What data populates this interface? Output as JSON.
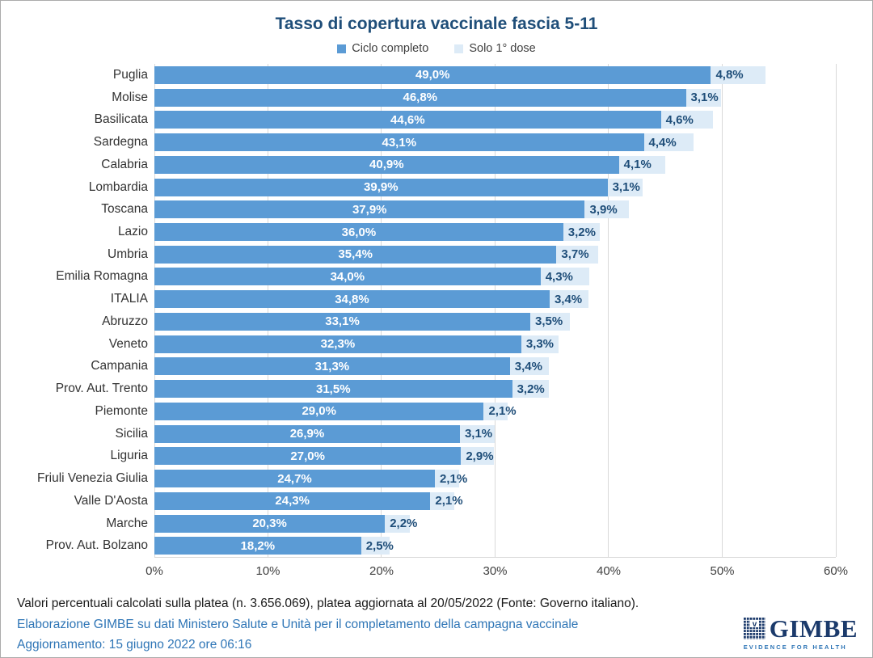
{
  "title": "Tasso di copertura vaccinale fascia 5-11",
  "colors": {
    "title_text": "#1F4E79",
    "bar_complete": "#5B9BD5",
    "bar_dose": "#DDEBF7",
    "dose_label_text": "#1F4E79",
    "footer_blue": "#2E75B6",
    "logo_navy": "#1B3A6B",
    "gridline": "#D9D9D9"
  },
  "chart_data": {
    "type": "bar",
    "orientation": "horizontal",
    "title": "Tasso di copertura vaccinale fascia 5-11",
    "categories": [
      "Puglia",
      "Molise",
      "Basilicata",
      "Sardegna",
      "Calabria",
      "Lombardia",
      "Toscana",
      "Lazio",
      "Umbria",
      "Emilia Romagna",
      "ITALIA",
      "Abruzzo",
      "Veneto",
      "Campania",
      "Prov. Aut. Trento",
      "Piemonte",
      "Sicilia",
      "Liguria",
      "Friuli Venezia Giulia",
      "Valle D'Aosta",
      "Marche",
      "Prov. Aut. Bolzano"
    ],
    "series": [
      {
        "name": "Ciclo completo",
        "color": "#5B9BD5",
        "values": [
          49.0,
          46.8,
          44.6,
          43.1,
          40.9,
          39.9,
          37.9,
          36.0,
          35.4,
          34.0,
          34.8,
          33.1,
          32.3,
          31.3,
          31.5,
          29.0,
          26.9,
          27.0,
          24.7,
          24.3,
          20.3,
          18.2
        ],
        "labels": [
          "49,0%",
          "46,8%",
          "44,6%",
          "43,1%",
          "40,9%",
          "39,9%",
          "37,9%",
          "36,0%",
          "35,4%",
          "34,0%",
          "34,8%",
          "33,1%",
          "32,3%",
          "31,3%",
          "31,5%",
          "29,0%",
          "26,9%",
          "27,0%",
          "24,7%",
          "24,3%",
          "20,3%",
          "18,2%"
        ]
      },
      {
        "name": "Solo 1° dose",
        "color": "#DDEBF7",
        "values": [
          4.8,
          3.1,
          4.6,
          4.4,
          4.1,
          3.1,
          3.9,
          3.2,
          3.7,
          4.3,
          3.4,
          3.5,
          3.3,
          3.4,
          3.2,
          2.1,
          3.1,
          2.9,
          2.1,
          2.1,
          2.2,
          2.5
        ],
        "labels": [
          "4,8%",
          "3,1%",
          "4,6%",
          "4,4%",
          "4,1%",
          "3,1%",
          "3,9%",
          "3,2%",
          "3,7%",
          "4,3%",
          "3,4%",
          "3,5%",
          "3,3%",
          "3,4%",
          "3,2%",
          "2,1%",
          "3,1%",
          "2,9%",
          "2,1%",
          "2,1%",
          "2,2%",
          "2,5%"
        ]
      }
    ],
    "stacked": true,
    "xlim": [
      0,
      60
    ],
    "xticks": [
      "0%",
      "10%",
      "20%",
      "30%",
      "40%",
      "50%",
      "60%"
    ],
    "grid": true,
    "legend_position": "top"
  },
  "footer": {
    "note": "Valori percentuali calcolati sulla platea (n. 3.656.069), platea aggiornata al 20/05/2022 (Fonte: Governo italiano).",
    "source": "Elaborazione GIMBE su dati Ministero Salute e Unità per il completamento della campagna vaccinale",
    "update": "Aggiornamento: 15 giugno 2022 ore 06:16"
  },
  "logo": {
    "name": "GIMBE",
    "tagline": "EVIDENCE FOR HEALTH"
  }
}
